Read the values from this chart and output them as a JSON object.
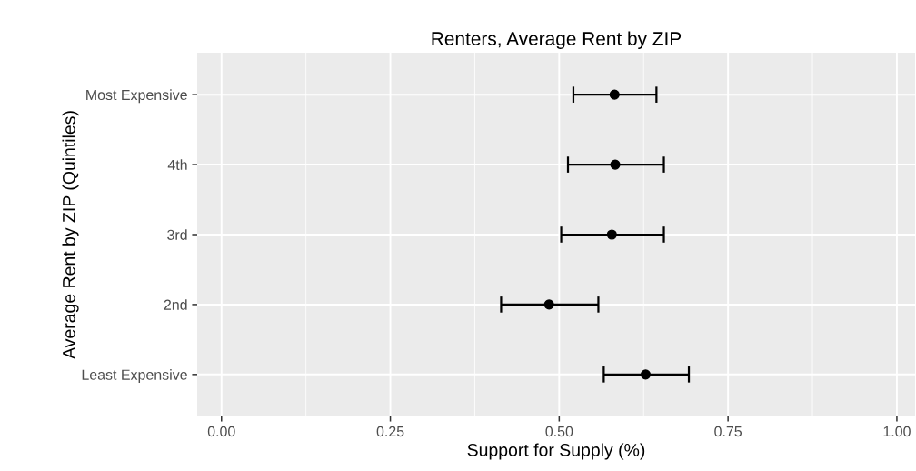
{
  "chart_data": {
    "type": "scatter",
    "orientation": "horizontal",
    "title": "Renters, Average Rent by ZIP",
    "xlabel": "Support for Supply (%)",
    "ylabel": "Average Rent by ZIP (Quintiles)",
    "categories": [
      "Most Expensive",
      "4th",
      "3rd",
      "2nd",
      "Least Expensive"
    ],
    "series": [
      {
        "color": "#000000",
        "values": [
          0.582,
          0.583,
          0.578,
          0.485,
          0.628
        ],
        "errors": [
          [
            0.521,
            0.644
          ],
          [
            0.513,
            0.655
          ],
          [
            0.503,
            0.655
          ],
          [
            0.414,
            0.558
          ],
          [
            0.566,
            0.692
          ]
        ]
      }
    ],
    "xlim": [
      -0.036,
      1.027
    ],
    "xticks": [
      {
        "value": 0,
        "label": "0.00"
      },
      {
        "value": 0.25,
        "label": "0.25"
      },
      {
        "value": 0.5,
        "label": "0.50"
      },
      {
        "value": 0.75,
        "label": "0.75"
      },
      {
        "value": 1,
        "label": "1.00"
      }
    ],
    "grid": true,
    "marker": "circle"
  }
}
